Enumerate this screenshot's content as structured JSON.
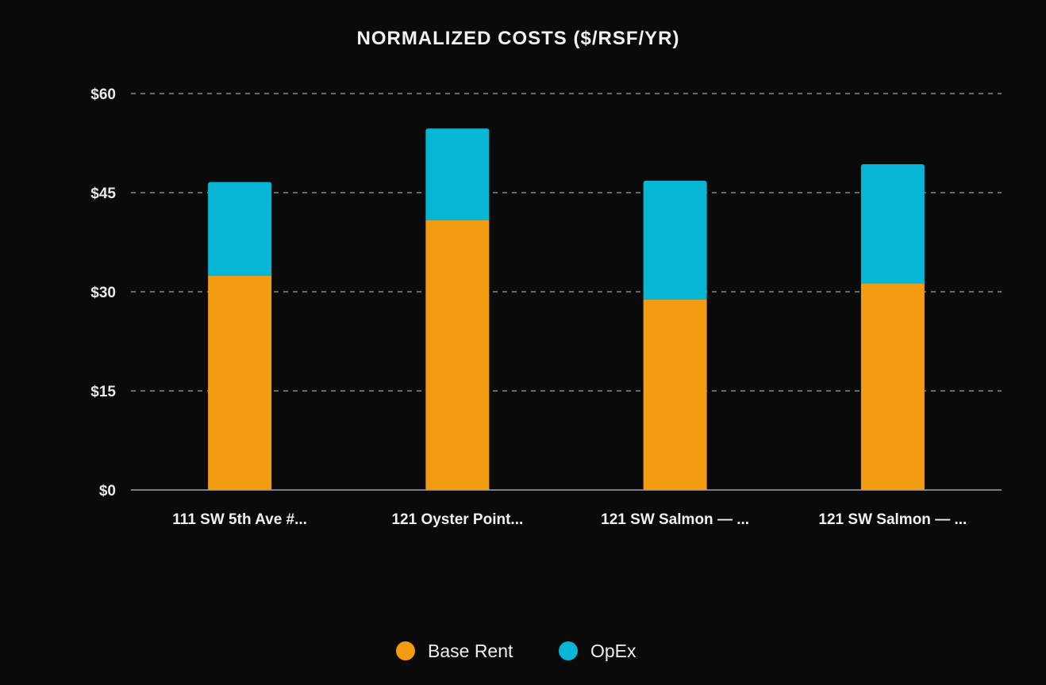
{
  "chart_data": {
    "type": "bar",
    "stacked": true,
    "title": "NORMALIZED COSTS ($/RSF/YR)",
    "xlabel": "",
    "ylabel": "",
    "ylim": [
      0,
      60
    ],
    "yticks": [
      0,
      15,
      30,
      45,
      60
    ],
    "ytick_labels": [
      "$0",
      "$15",
      "$30",
      "$45",
      "$60"
    ],
    "grid": true,
    "legend_position": "bottom",
    "categories": [
      "111 SW 5th Ave #...",
      "121 Oyster Point...",
      "121 SW Salmon — ...",
      "121 SW Salmon — ..."
    ],
    "series": [
      {
        "name": "Base Rent",
        "color": "#f39c12",
        "values": [
          32.4,
          40.8,
          28.8,
          31.3
        ]
      },
      {
        "name": "OpEx",
        "color": "#06b6d4",
        "values": [
          14.2,
          13.9,
          18.0,
          18.0
        ]
      }
    ]
  },
  "colors": {
    "background": "#0a0a0b",
    "grid": "#9ca3af",
    "axis": "#9ca3af"
  }
}
